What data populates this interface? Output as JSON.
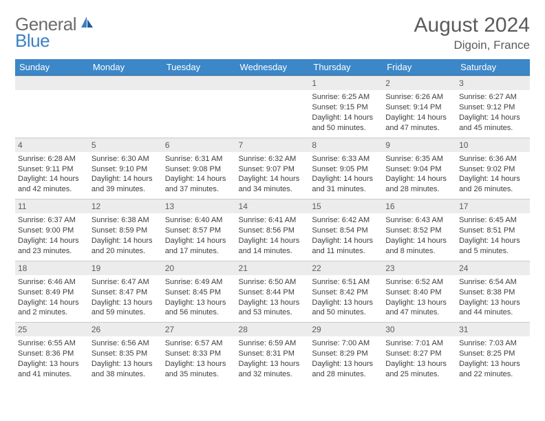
{
  "logo": {
    "textA": "General",
    "textB": "Blue"
  },
  "title": "August 2024",
  "location": "Digoin, France",
  "colors": {
    "header_bg": "#3b87c8",
    "header_text": "#ffffff",
    "daynum_bg": "#ececec",
    "body_text": "#3d3d3d",
    "title_text": "#5a5a5a",
    "logo_gray": "#6b6b6b",
    "logo_blue": "#3b7fc4"
  },
  "weekdays": [
    "Sunday",
    "Monday",
    "Tuesday",
    "Wednesday",
    "Thursday",
    "Friday",
    "Saturday"
  ],
  "cells": [
    {
      "n": "",
      "t": ""
    },
    {
      "n": "",
      "t": ""
    },
    {
      "n": "",
      "t": ""
    },
    {
      "n": "",
      "t": ""
    },
    {
      "n": "1",
      "t": "Sunrise: 6:25 AM\nSunset: 9:15 PM\nDaylight: 14 hours and 50 minutes."
    },
    {
      "n": "2",
      "t": "Sunrise: 6:26 AM\nSunset: 9:14 PM\nDaylight: 14 hours and 47 minutes."
    },
    {
      "n": "3",
      "t": "Sunrise: 6:27 AM\nSunset: 9:12 PM\nDaylight: 14 hours and 45 minutes."
    },
    {
      "n": "4",
      "t": "Sunrise: 6:28 AM\nSunset: 9:11 PM\nDaylight: 14 hours and 42 minutes."
    },
    {
      "n": "5",
      "t": "Sunrise: 6:30 AM\nSunset: 9:10 PM\nDaylight: 14 hours and 39 minutes."
    },
    {
      "n": "6",
      "t": "Sunrise: 6:31 AM\nSunset: 9:08 PM\nDaylight: 14 hours and 37 minutes."
    },
    {
      "n": "7",
      "t": "Sunrise: 6:32 AM\nSunset: 9:07 PM\nDaylight: 14 hours and 34 minutes."
    },
    {
      "n": "8",
      "t": "Sunrise: 6:33 AM\nSunset: 9:05 PM\nDaylight: 14 hours and 31 minutes."
    },
    {
      "n": "9",
      "t": "Sunrise: 6:35 AM\nSunset: 9:04 PM\nDaylight: 14 hours and 28 minutes."
    },
    {
      "n": "10",
      "t": "Sunrise: 6:36 AM\nSunset: 9:02 PM\nDaylight: 14 hours and 26 minutes."
    },
    {
      "n": "11",
      "t": "Sunrise: 6:37 AM\nSunset: 9:00 PM\nDaylight: 14 hours and 23 minutes."
    },
    {
      "n": "12",
      "t": "Sunrise: 6:38 AM\nSunset: 8:59 PM\nDaylight: 14 hours and 20 minutes."
    },
    {
      "n": "13",
      "t": "Sunrise: 6:40 AM\nSunset: 8:57 PM\nDaylight: 14 hours and 17 minutes."
    },
    {
      "n": "14",
      "t": "Sunrise: 6:41 AM\nSunset: 8:56 PM\nDaylight: 14 hours and 14 minutes."
    },
    {
      "n": "15",
      "t": "Sunrise: 6:42 AM\nSunset: 8:54 PM\nDaylight: 14 hours and 11 minutes."
    },
    {
      "n": "16",
      "t": "Sunrise: 6:43 AM\nSunset: 8:52 PM\nDaylight: 14 hours and 8 minutes."
    },
    {
      "n": "17",
      "t": "Sunrise: 6:45 AM\nSunset: 8:51 PM\nDaylight: 14 hours and 5 minutes."
    },
    {
      "n": "18",
      "t": "Sunrise: 6:46 AM\nSunset: 8:49 PM\nDaylight: 14 hours and 2 minutes."
    },
    {
      "n": "19",
      "t": "Sunrise: 6:47 AM\nSunset: 8:47 PM\nDaylight: 13 hours and 59 minutes."
    },
    {
      "n": "20",
      "t": "Sunrise: 6:49 AM\nSunset: 8:45 PM\nDaylight: 13 hours and 56 minutes."
    },
    {
      "n": "21",
      "t": "Sunrise: 6:50 AM\nSunset: 8:44 PM\nDaylight: 13 hours and 53 minutes."
    },
    {
      "n": "22",
      "t": "Sunrise: 6:51 AM\nSunset: 8:42 PM\nDaylight: 13 hours and 50 minutes."
    },
    {
      "n": "23",
      "t": "Sunrise: 6:52 AM\nSunset: 8:40 PM\nDaylight: 13 hours and 47 minutes."
    },
    {
      "n": "24",
      "t": "Sunrise: 6:54 AM\nSunset: 8:38 PM\nDaylight: 13 hours and 44 minutes."
    },
    {
      "n": "25",
      "t": "Sunrise: 6:55 AM\nSunset: 8:36 PM\nDaylight: 13 hours and 41 minutes."
    },
    {
      "n": "26",
      "t": "Sunrise: 6:56 AM\nSunset: 8:35 PM\nDaylight: 13 hours and 38 minutes."
    },
    {
      "n": "27",
      "t": "Sunrise: 6:57 AM\nSunset: 8:33 PM\nDaylight: 13 hours and 35 minutes."
    },
    {
      "n": "28",
      "t": "Sunrise: 6:59 AM\nSunset: 8:31 PM\nDaylight: 13 hours and 32 minutes."
    },
    {
      "n": "29",
      "t": "Sunrise: 7:00 AM\nSunset: 8:29 PM\nDaylight: 13 hours and 28 minutes."
    },
    {
      "n": "30",
      "t": "Sunrise: 7:01 AM\nSunset: 8:27 PM\nDaylight: 13 hours and 25 minutes."
    },
    {
      "n": "31",
      "t": "Sunrise: 7:03 AM\nSunset: 8:25 PM\nDaylight: 13 hours and 22 minutes."
    }
  ]
}
